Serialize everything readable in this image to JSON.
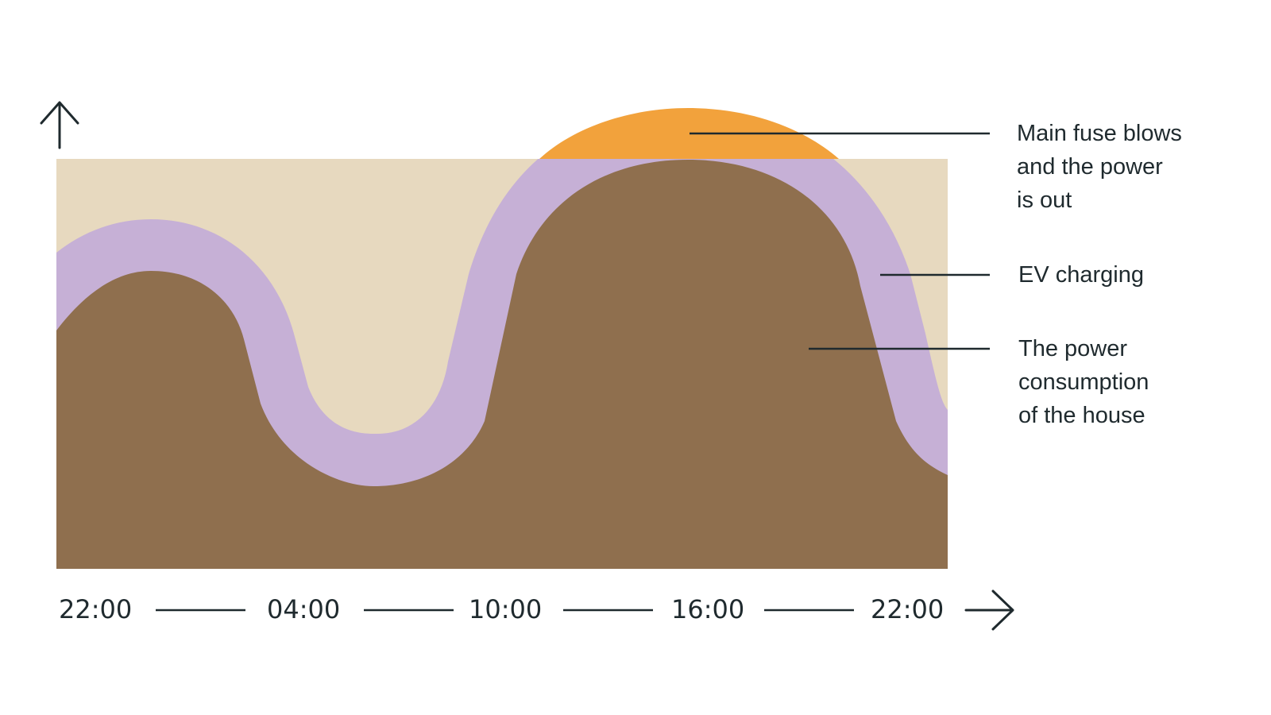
{
  "colors": {
    "capacity_area": "#e7d9bf",
    "house_consumption": "#8f6f4e",
    "ev_charging": "#c6b0d6",
    "overload": "#f2a23c",
    "ink": "#1f2a2e"
  },
  "icons": {
    "y_axis": "arrow-up-icon",
    "x_axis": "arrow-right-icon"
  },
  "x_axis": {
    "ticks": [
      "22:00",
      "04:00",
      "10:00",
      "16:00",
      "22:00"
    ]
  },
  "annotations": {
    "fuse": {
      "lines": [
        "Main fuse blows",
        "and the power",
        "is out"
      ]
    },
    "ev": {
      "lines": [
        "EV charging"
      ]
    },
    "house": {
      "lines": [
        "The power",
        "consumption",
        "of the house"
      ]
    }
  }
}
